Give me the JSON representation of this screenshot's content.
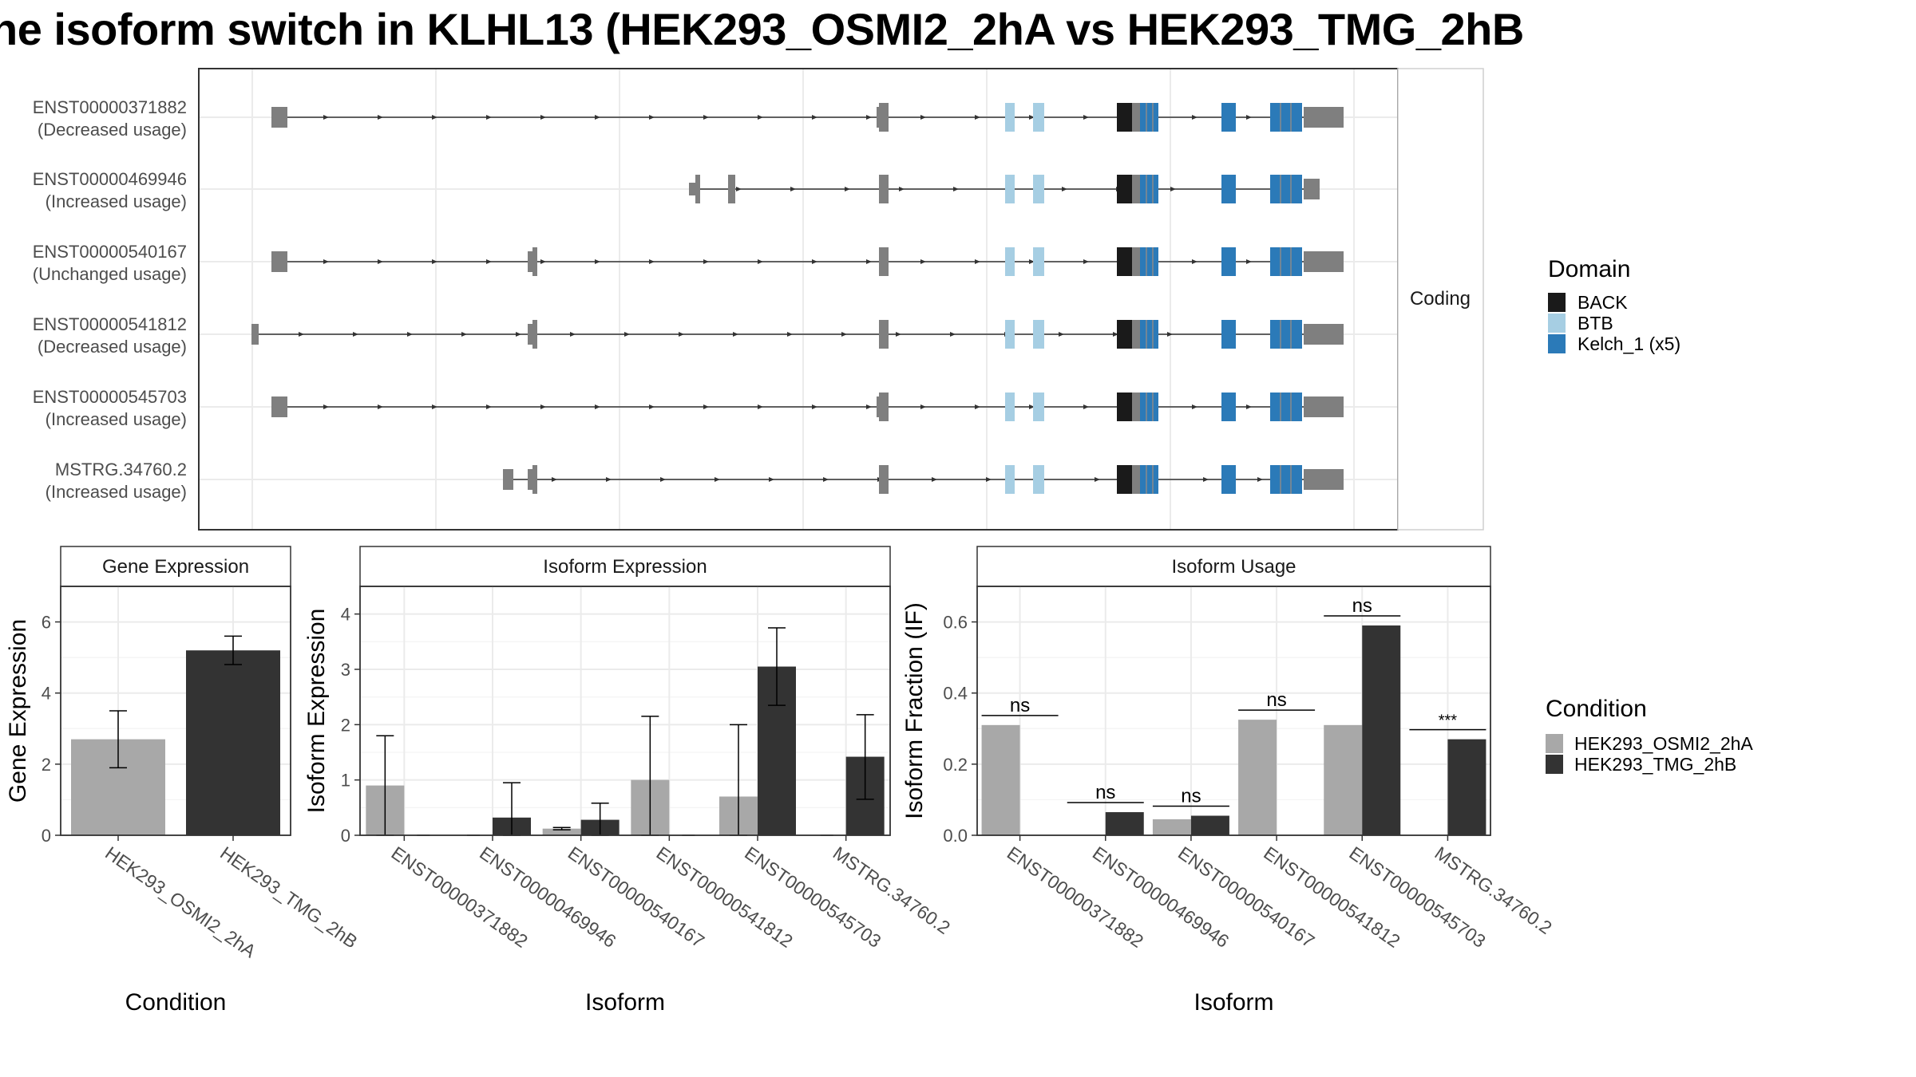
{
  "title": "ne isoform switch in KLHL13 (HEK293_OSMI2_2hA vs HEK293_TMG_2hB",
  "colors": {
    "condition1": "#a8a8a8",
    "condition2": "#333333",
    "exon": "#7f7f7f",
    "BACK": "#1a1a1a",
    "BTB": "#a6cee3",
    "Kelch_1": "#2b7ab8"
  },
  "chart_data": [
    {
      "type": "transcript_structure",
      "panel_label": "Coding",
      "transcripts": [
        {
          "id": "ENST00000371882",
          "usage": "(Decreased usage)"
        },
        {
          "id": "ENST00000469946",
          "usage": "(Increased usage)"
        },
        {
          "id": "ENST00000540167",
          "usage": "(Unchanged usage)"
        },
        {
          "id": "ENST00000541812",
          "usage": "(Decreased usage)"
        },
        {
          "id": "ENST00000545703",
          "usage": "(Increased usage)"
        },
        {
          "id": "MSTRG.34760.2",
          "usage": "(Increased usage)"
        }
      ],
      "legend": {
        "title": "Domain",
        "entries": [
          {
            "key": "BACK",
            "label": "BACK"
          },
          {
            "key": "BTB",
            "label": "BTB"
          },
          {
            "key": "Kelch_1",
            "label": "Kelch_1 (x5)"
          }
        ]
      }
    },
    {
      "type": "bar",
      "title": "Gene Expression",
      "xlabel": "Condition",
      "ylabel": "Gene Expression",
      "ylim": [
        0,
        7
      ],
      "yticks": [
        0,
        2,
        4,
        6
      ],
      "categories": [
        "HEK293_OSMI2_2hA",
        "HEK293_TMG_2hB"
      ],
      "values": [
        2.7,
        5.2
      ],
      "errors": [
        [
          1.9,
          3.5
        ],
        [
          4.8,
          5.6
        ]
      ]
    },
    {
      "type": "bar",
      "title": "Isoform Expression",
      "xlabel": "Isoform",
      "ylabel": "Isoform Expression",
      "ylim": [
        0,
        4.5
      ],
      "yticks": [
        0,
        1,
        2,
        3,
        4
      ],
      "categories": [
        "ENST00000371882",
        "ENST00000469946",
        "ENST00000540167",
        "ENST00000541812",
        "ENST00000545703",
        "MSTRG.34760.2"
      ],
      "series": [
        {
          "name": "HEK293_OSMI2_2hA",
          "values": [
            0.9,
            0.0,
            0.12,
            1.0,
            0.7,
            0.0
          ],
          "errors": [
            [
              0.0,
              1.8
            ],
            [
              0.0,
              0.0
            ],
            [
              0.1,
              0.14
            ],
            [
              0.0,
              2.15
            ],
            [
              0.0,
              2.0
            ],
            [
              0.0,
              0.0
            ]
          ]
        },
        {
          "name": "HEK293_TMG_2hB",
          "values": [
            0.0,
            0.32,
            0.28,
            0.0,
            3.05,
            1.42
          ],
          "errors": [
            [
              0.0,
              0.0
            ],
            [
              0.0,
              0.95
            ],
            [
              0.0,
              0.58
            ],
            [
              0.0,
              0.0
            ],
            [
              2.35,
              3.75
            ],
            [
              0.65,
              2.18
            ]
          ]
        }
      ]
    },
    {
      "type": "bar",
      "title": "Isoform Usage",
      "xlabel": "Isoform",
      "ylabel": "Isoform Fraction (IF)",
      "ylim": [
        0,
        0.7
      ],
      "yticks": [
        0.0,
        0.2,
        0.4,
        0.6
      ],
      "ytick_labels": [
        "0.0",
        "0.2",
        "0.4",
        "0.6"
      ],
      "categories": [
        "ENST00000371882",
        "ENST00000469946",
        "ENST00000540167",
        "ENST00000541812",
        "ENST00000545703",
        "MSTRG.34760.2"
      ],
      "series": [
        {
          "name": "HEK293_OSMI2_2hA",
          "values": [
            0.31,
            0.0,
            0.045,
            0.325,
            0.31,
            0.0
          ]
        },
        {
          "name": "HEK293_TMG_2hB",
          "values": [
            0.0,
            0.065,
            0.055,
            0.0,
            0.59,
            0.27
          ]
        }
      ],
      "significance": [
        "ns",
        "ns",
        "ns",
        "ns",
        "ns",
        "***"
      ],
      "legend": {
        "title": "Condition",
        "entries": [
          "HEK293_OSMI2_2hA",
          "HEK293_TMG_2hB"
        ]
      }
    }
  ]
}
